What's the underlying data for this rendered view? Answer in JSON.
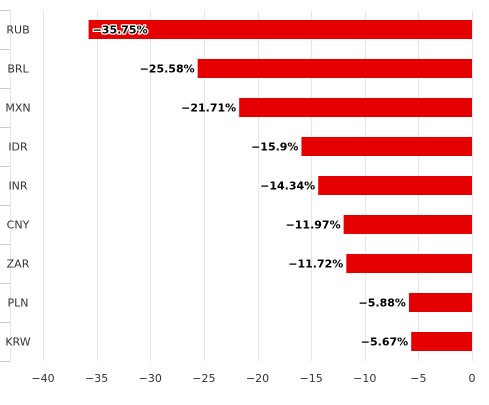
{
  "chart_data": {
    "type": "bar",
    "orientation": "horizontal",
    "title": "",
    "xlabel": "",
    "ylabel": "",
    "categories": [
      "RUB",
      "BRL",
      "MXN",
      "IDR",
      "INR",
      "CNY",
      "ZAR",
      "PLN",
      "KRW"
    ],
    "values": [
      -35.75,
      -25.58,
      -21.71,
      -15.9,
      -14.34,
      -11.97,
      -11.72,
      -5.88,
      -5.67
    ],
    "data_labels": [
      "−35.75%",
      "−25.58%",
      "−21.71%",
      "−15.9%",
      "−14.34%",
      "−11.97%",
      "−11.72%",
      "−5.88%",
      "−5.67%"
    ],
    "xlim": [
      -40,
      0
    ],
    "xticks": [
      -40,
      -35,
      -30,
      -25,
      -20,
      -15,
      -10,
      -5,
      0
    ],
    "xtick_labels": [
      "−40",
      "−35",
      "−30",
      "−25",
      "−20",
      "−15",
      "−10",
      "−5",
      "0"
    ],
    "grid": "vertical",
    "legend": "none",
    "bar_color": "#e50000",
    "grid_color": "#e6e6e6",
    "axis_color": "#cccccc"
  }
}
